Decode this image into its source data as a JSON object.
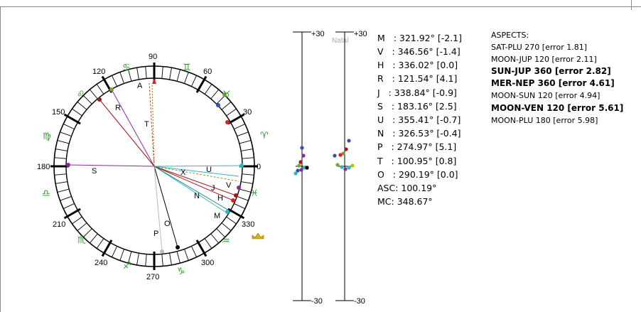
{
  "wheel": {
    "degree_labels": [
      "90",
      "60",
      "30",
      "0",
      "330",
      "300",
      "270",
      "240",
      "210",
      "180",
      "150",
      "120"
    ],
    "planet_letters": [
      "A",
      "R",
      "T",
      "S",
      "X",
      "U",
      "V",
      "J",
      "H",
      "N",
      "M",
      "O",
      "P"
    ]
  },
  "natal": {
    "label": "Natal",
    "scale_top": "+30",
    "scale_bottom": "-30"
  },
  "positions": [
    {
      "text": "M   : 321.92° [-2.1]"
    },
    {
      "text": "V   : 346.56° [-1.4]"
    },
    {
      "text": "H   : 336.02° [0.0]"
    },
    {
      "text": "R   : 121.54° [4.1]"
    },
    {
      "text": "J   : 338.84° [-0.9]"
    },
    {
      "text": "S   : 183.16° [2.5]"
    },
    {
      "text": "U   : 355.41° [-0.7]"
    },
    {
      "text": "N   : 326.53° [-0.4]"
    },
    {
      "text": "P   : 274.97° [5.1]"
    },
    {
      "text": "T   : 100.95° [0.8]"
    },
    {
      "text": "O   : 290.19° [0.0]"
    },
    {
      "text": "ASC: 100.19°"
    },
    {
      "text": "MC: 348.67°"
    }
  ],
  "aspects": {
    "title": "ASPECTS:",
    "items": [
      {
        "text": "SAT-PLU 270 [error 1.81]",
        "bold": false
      },
      {
        "text": "MOON-JUP 120 [error 2.11]",
        "bold": false
      },
      {
        "text": "SUN-JUP 360 [error 2.82]",
        "bold": true
      },
      {
        "text": "MER-NEP 360 [error 4.61]",
        "bold": true
      },
      {
        "text": "MOON-SUN 120 [error 4.94]",
        "bold": false
      },
      {
        "text": "MOON-VEN 120 [error 5.61]",
        "bold": true
      },
      {
        "text": "MOON-PLU 180 [error 5.98]",
        "bold": false
      }
    ]
  },
  "colors": {
    "zodiac_green": "#2a9a2a",
    "dark_red": "#a01818",
    "purple": "#8a2a9a",
    "cyan": "#2ab8c8",
    "teal": "#208888",
    "mc_marker": "#e02020",
    "crown": "#e0b000"
  }
}
